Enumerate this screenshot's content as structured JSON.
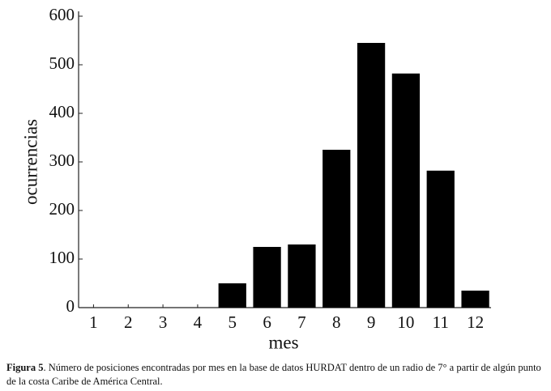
{
  "chart_data": {
    "type": "bar",
    "x_label": "mes",
    "y_label": "ocurrencias",
    "categories": [
      "1",
      "2",
      "3",
      "4",
      "5",
      "6",
      "7",
      "8",
      "9",
      "10",
      "11",
      "12"
    ],
    "values": [
      0,
      0,
      0,
      0,
      50,
      125,
      130,
      325,
      545,
      482,
      282,
      35
    ],
    "color": "#000000",
    "ylim": [
      0,
      600
    ],
    "yticks": [
      0,
      100,
      200,
      300,
      400,
      500,
      600
    ],
    "grid": false
  },
  "caption": {
    "label": "Figura 5",
    "text": ". Número de posiciones encontradas por mes en la base de datos HURDAT dentro de un radio de 7° a partir de algún punto de la costa Caribe de América Central."
  }
}
